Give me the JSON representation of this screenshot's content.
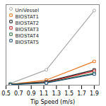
{
  "chart_data": {
    "type": "line",
    "xlabel": "Tip Speed (m/s)",
    "series": [
      {
        "name": "UniVessel",
        "color": "#aaaaaa",
        "marker": "circle",
        "x": [
          0.57,
          1.14,
          1.9
        ],
        "values": [
          0.02,
          0.18,
          0.88
        ]
      },
      {
        "name": "BIOSTAT1",
        "color": "#e87722",
        "marker": "square",
        "x": [
          0.57,
          1.14,
          1.9
        ],
        "values": [
          0.01,
          0.06,
          0.28
        ]
      },
      {
        "name": "BIOSTAT2",
        "color": "#1a1a1a",
        "marker": "square",
        "x": [
          0.57,
          1.14,
          1.9
        ],
        "values": [
          0.01,
          0.04,
          0.18
        ]
      },
      {
        "name": "BIOSTAT3",
        "color": "#cc2222",
        "marker": "square",
        "x": [
          0.57,
          1.14,
          1.9
        ],
        "values": [
          0.01,
          0.035,
          0.165
        ]
      },
      {
        "name": "BIOSTAT4",
        "color": "#2e6b3e",
        "marker": "square",
        "x": [
          0.57,
          1.14,
          1.9
        ],
        "values": [
          0.01,
          0.03,
          0.14
        ]
      },
      {
        "name": "BIOSTAT5",
        "color": "#1f4e79",
        "marker": "square",
        "x": [
          0.57,
          1.14,
          1.9
        ],
        "values": [
          0.005,
          0.025,
          0.13
        ]
      }
    ],
    "xlim": [
      0.5,
      1.98
    ],
    "ylim": [
      0,
      0.95
    ],
    "xticks": [
      0.5,
      0.7,
      0.9,
      1.1,
      1.3,
      1.5,
      1.7,
      1.9
    ],
    "tick_labels": "x",
    "legend": "upper left"
  }
}
